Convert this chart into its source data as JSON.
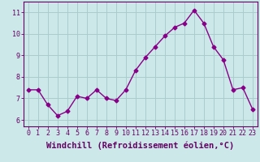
{
  "x": [
    0,
    1,
    2,
    3,
    4,
    5,
    6,
    7,
    8,
    9,
    10,
    11,
    12,
    13,
    14,
    15,
    16,
    17,
    18,
    19,
    20,
    21,
    22,
    23
  ],
  "y": [
    7.4,
    7.4,
    6.7,
    6.2,
    6.4,
    7.1,
    7.0,
    7.4,
    7.0,
    6.9,
    7.4,
    8.3,
    8.9,
    9.4,
    9.9,
    10.3,
    10.5,
    11.1,
    10.5,
    9.4,
    8.8,
    7.4,
    7.5,
    6.5
  ],
  "line_color": "#880088",
  "marker": "D",
  "marker_size": 2.5,
  "bg_color": "#cce8e8",
  "grid_color": "#aacccc",
  "xlabel": "Windchill (Refroidissement éolien,°C)",
  "ylim_min": 5.7,
  "ylim_max": 11.5,
  "xlim_min": -0.5,
  "xlim_max": 23.5,
  "yticks": [
    6,
    7,
    8,
    9,
    10,
    11
  ],
  "xticks": [
    0,
    1,
    2,
    3,
    4,
    5,
    6,
    7,
    8,
    9,
    10,
    11,
    12,
    13,
    14,
    15,
    16,
    17,
    18,
    19,
    20,
    21,
    22,
    23
  ],
  "axis_color": "#660066",
  "tick_color": "#660066",
  "label_fontsize": 7.5,
  "tick_fontsize": 6.0,
  "linewidth": 1.0
}
